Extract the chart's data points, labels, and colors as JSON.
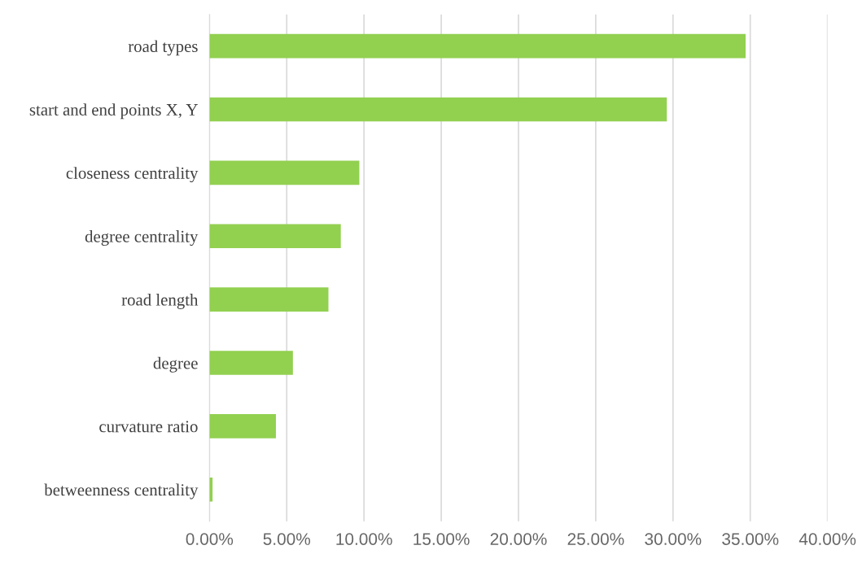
{
  "chart_data": {
    "type": "bar",
    "orientation": "horizontal",
    "categories": [
      "road types",
      "start and end points X, Y",
      "closeness centrality",
      "degree centrality",
      "road length",
      "degree",
      "curvature ratio",
      "betweenness centrality"
    ],
    "values": [
      34.7,
      29.6,
      9.7,
      8.5,
      7.7,
      5.4,
      4.3,
      0.2
    ],
    "color": "#92d050",
    "xlim": [
      0,
      40
    ],
    "xticks": [
      {
        "value": 0,
        "label": "0.00%"
      },
      {
        "value": 5,
        "label": "5.00%"
      },
      {
        "value": 10,
        "label": "10.00%"
      },
      {
        "value": 15,
        "label": "15.00%"
      },
      {
        "value": 20,
        "label": "20.00%"
      },
      {
        "value": 25,
        "label": "25.00%"
      },
      {
        "value": 30,
        "label": "30.00%"
      },
      {
        "value": 35,
        "label": "35.00%"
      },
      {
        "value": 40,
        "label": "40.00%"
      }
    ],
    "grid": "x",
    "legend": false
  }
}
